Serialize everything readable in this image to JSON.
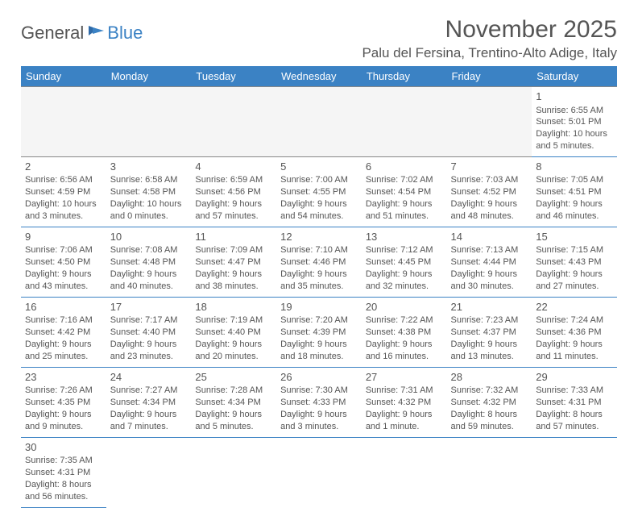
{
  "logo": {
    "general": "General",
    "blue": "Blue"
  },
  "title": "November 2025",
  "location": "Palu del Fersina, Trentino-Alto Adige, Italy",
  "colors": {
    "header_bg": "#3b82c4",
    "header_text": "#ffffff",
    "cell_border_top": "#888888",
    "cell_border_bottom": "#3b82c4",
    "text": "#555555",
    "empty_bg": "#f5f5f5"
  },
  "day_headers": [
    "Sunday",
    "Monday",
    "Tuesday",
    "Wednesday",
    "Thursday",
    "Friday",
    "Saturday"
  ],
  "weeks": [
    [
      null,
      null,
      null,
      null,
      null,
      null,
      {
        "n": "1",
        "sr": "Sunrise: 6:55 AM",
        "ss": "Sunset: 5:01 PM",
        "dl1": "Daylight: 10 hours",
        "dl2": "and 5 minutes."
      }
    ],
    [
      {
        "n": "2",
        "sr": "Sunrise: 6:56 AM",
        "ss": "Sunset: 4:59 PM",
        "dl1": "Daylight: 10 hours",
        "dl2": "and 3 minutes."
      },
      {
        "n": "3",
        "sr": "Sunrise: 6:58 AM",
        "ss": "Sunset: 4:58 PM",
        "dl1": "Daylight: 10 hours",
        "dl2": "and 0 minutes."
      },
      {
        "n": "4",
        "sr": "Sunrise: 6:59 AM",
        "ss": "Sunset: 4:56 PM",
        "dl1": "Daylight: 9 hours",
        "dl2": "and 57 minutes."
      },
      {
        "n": "5",
        "sr": "Sunrise: 7:00 AM",
        "ss": "Sunset: 4:55 PM",
        "dl1": "Daylight: 9 hours",
        "dl2": "and 54 minutes."
      },
      {
        "n": "6",
        "sr": "Sunrise: 7:02 AM",
        "ss": "Sunset: 4:54 PM",
        "dl1": "Daylight: 9 hours",
        "dl2": "and 51 minutes."
      },
      {
        "n": "7",
        "sr": "Sunrise: 7:03 AM",
        "ss": "Sunset: 4:52 PM",
        "dl1": "Daylight: 9 hours",
        "dl2": "and 48 minutes."
      },
      {
        "n": "8",
        "sr": "Sunrise: 7:05 AM",
        "ss": "Sunset: 4:51 PM",
        "dl1": "Daylight: 9 hours",
        "dl2": "and 46 minutes."
      }
    ],
    [
      {
        "n": "9",
        "sr": "Sunrise: 7:06 AM",
        "ss": "Sunset: 4:50 PM",
        "dl1": "Daylight: 9 hours",
        "dl2": "and 43 minutes."
      },
      {
        "n": "10",
        "sr": "Sunrise: 7:08 AM",
        "ss": "Sunset: 4:48 PM",
        "dl1": "Daylight: 9 hours",
        "dl2": "and 40 minutes."
      },
      {
        "n": "11",
        "sr": "Sunrise: 7:09 AM",
        "ss": "Sunset: 4:47 PM",
        "dl1": "Daylight: 9 hours",
        "dl2": "and 38 minutes."
      },
      {
        "n": "12",
        "sr": "Sunrise: 7:10 AM",
        "ss": "Sunset: 4:46 PM",
        "dl1": "Daylight: 9 hours",
        "dl2": "and 35 minutes."
      },
      {
        "n": "13",
        "sr": "Sunrise: 7:12 AM",
        "ss": "Sunset: 4:45 PM",
        "dl1": "Daylight: 9 hours",
        "dl2": "and 32 minutes."
      },
      {
        "n": "14",
        "sr": "Sunrise: 7:13 AM",
        "ss": "Sunset: 4:44 PM",
        "dl1": "Daylight: 9 hours",
        "dl2": "and 30 minutes."
      },
      {
        "n": "15",
        "sr": "Sunrise: 7:15 AM",
        "ss": "Sunset: 4:43 PM",
        "dl1": "Daylight: 9 hours",
        "dl2": "and 27 minutes."
      }
    ],
    [
      {
        "n": "16",
        "sr": "Sunrise: 7:16 AM",
        "ss": "Sunset: 4:42 PM",
        "dl1": "Daylight: 9 hours",
        "dl2": "and 25 minutes."
      },
      {
        "n": "17",
        "sr": "Sunrise: 7:17 AM",
        "ss": "Sunset: 4:40 PM",
        "dl1": "Daylight: 9 hours",
        "dl2": "and 23 minutes."
      },
      {
        "n": "18",
        "sr": "Sunrise: 7:19 AM",
        "ss": "Sunset: 4:40 PM",
        "dl1": "Daylight: 9 hours",
        "dl2": "and 20 minutes."
      },
      {
        "n": "19",
        "sr": "Sunrise: 7:20 AM",
        "ss": "Sunset: 4:39 PM",
        "dl1": "Daylight: 9 hours",
        "dl2": "and 18 minutes."
      },
      {
        "n": "20",
        "sr": "Sunrise: 7:22 AM",
        "ss": "Sunset: 4:38 PM",
        "dl1": "Daylight: 9 hours",
        "dl2": "and 16 minutes."
      },
      {
        "n": "21",
        "sr": "Sunrise: 7:23 AM",
        "ss": "Sunset: 4:37 PM",
        "dl1": "Daylight: 9 hours",
        "dl2": "and 13 minutes."
      },
      {
        "n": "22",
        "sr": "Sunrise: 7:24 AM",
        "ss": "Sunset: 4:36 PM",
        "dl1": "Daylight: 9 hours",
        "dl2": "and 11 minutes."
      }
    ],
    [
      {
        "n": "23",
        "sr": "Sunrise: 7:26 AM",
        "ss": "Sunset: 4:35 PM",
        "dl1": "Daylight: 9 hours",
        "dl2": "and 9 minutes."
      },
      {
        "n": "24",
        "sr": "Sunrise: 7:27 AM",
        "ss": "Sunset: 4:34 PM",
        "dl1": "Daylight: 9 hours",
        "dl2": "and 7 minutes."
      },
      {
        "n": "25",
        "sr": "Sunrise: 7:28 AM",
        "ss": "Sunset: 4:34 PM",
        "dl1": "Daylight: 9 hours",
        "dl2": "and 5 minutes."
      },
      {
        "n": "26",
        "sr": "Sunrise: 7:30 AM",
        "ss": "Sunset: 4:33 PM",
        "dl1": "Daylight: 9 hours",
        "dl2": "and 3 minutes."
      },
      {
        "n": "27",
        "sr": "Sunrise: 7:31 AM",
        "ss": "Sunset: 4:32 PM",
        "dl1": "Daylight: 9 hours",
        "dl2": "and 1 minute."
      },
      {
        "n": "28",
        "sr": "Sunrise: 7:32 AM",
        "ss": "Sunset: 4:32 PM",
        "dl1": "Daylight: 8 hours",
        "dl2": "and 59 minutes."
      },
      {
        "n": "29",
        "sr": "Sunrise: 7:33 AM",
        "ss": "Sunset: 4:31 PM",
        "dl1": "Daylight: 8 hours",
        "dl2": "and 57 minutes."
      }
    ],
    [
      {
        "n": "30",
        "sr": "Sunrise: 7:35 AM",
        "ss": "Sunset: 4:31 PM",
        "dl1": "Daylight: 8 hours",
        "dl2": "and 56 minutes."
      },
      null,
      null,
      null,
      null,
      null,
      null
    ]
  ]
}
